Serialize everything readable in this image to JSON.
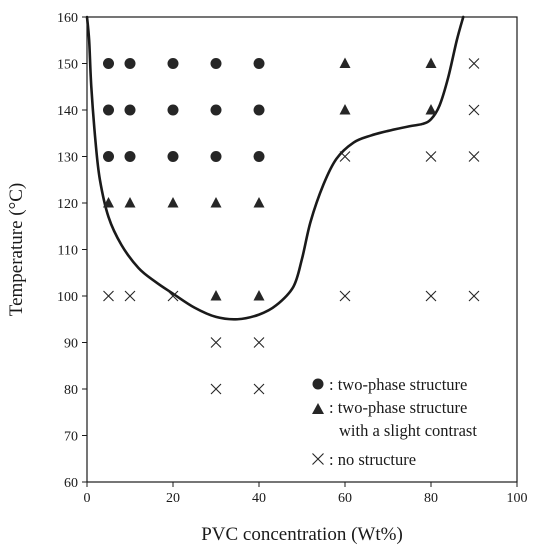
{
  "chart_data": {
    "type": "scatter",
    "xlabel": "PVC concentration (Wt%)",
    "ylabel": "Temperature (°C)",
    "xlim": [
      0,
      100
    ],
    "ylim": [
      60,
      160
    ],
    "x_ticks": [
      0,
      20,
      40,
      60,
      80,
      100
    ],
    "y_ticks": [
      60,
      70,
      80,
      90,
      100,
      110,
      120,
      130,
      140,
      150,
      160
    ],
    "grid": false,
    "legend_position": "bottom-right",
    "series": [
      {
        "name": ": two-phase structure",
        "marker": "circle",
        "x": [
          5,
          10,
          20,
          30,
          40,
          5,
          10,
          20,
          30,
          40,
          5,
          10,
          20,
          30,
          40
        ],
        "y": [
          150,
          150,
          150,
          150,
          150,
          140,
          140,
          140,
          140,
          140,
          130,
          130,
          130,
          130,
          130
        ]
      },
      {
        "name": ": two-phase structure",
        "name_line2": "with a slight contrast",
        "marker": "triangle",
        "x": [
          60,
          80,
          60,
          80,
          5,
          10,
          20,
          30,
          40,
          30,
          40
        ],
        "y": [
          150,
          150,
          140,
          140,
          120,
          120,
          120,
          120,
          120,
          100,
          100
        ]
      },
      {
        "name": ": no structure",
        "marker": "x",
        "x": [
          90,
          90,
          60,
          80,
          90,
          5,
          10,
          20,
          60,
          80,
          90,
          30,
          40,
          30,
          40
        ],
        "y": [
          150,
          140,
          130,
          130,
          130,
          100,
          100,
          100,
          100,
          100,
          100,
          90,
          90,
          80,
          80
        ]
      }
    ],
    "boundary_curve": {
      "x": [
        0,
        0.5,
        1,
        2,
        3,
        5,
        8,
        12,
        16,
        20,
        25,
        30,
        35,
        40,
        44,
        48,
        50,
        52,
        55,
        58,
        62,
        66,
        70,
        75,
        78,
        80,
        82,
        84,
        86,
        87.5
      ],
      "y": [
        160,
        155,
        145,
        133,
        125,
        117,
        111,
        106,
        103,
        100.5,
        97.5,
        95.5,
        95,
        96,
        98,
        102,
        108,
        116,
        124,
        129.5,
        133,
        134.5,
        135.5,
        136.5,
        137,
        138,
        141,
        147,
        155,
        160
      ]
    },
    "colors": {
      "marker": "#262626",
      "line": "#1a1a1a",
      "axis": "#1a1a1a"
    }
  }
}
